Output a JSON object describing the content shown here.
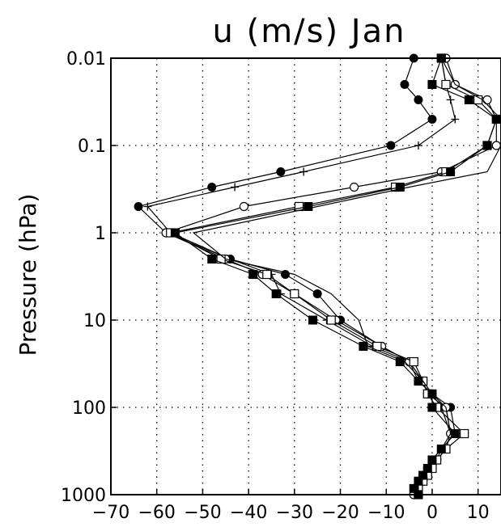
{
  "chart_data": {
    "type": "line",
    "title": "u (m/s) Jan",
    "ylabel": "Pressure (hPa)",
    "xlabel": "",
    "xlim": [
      -70,
      15
    ],
    "ylim": [
      0.01,
      1000
    ],
    "y_scale": "log",
    "y_reversed": true,
    "grid": "dotted",
    "x_ticks": [
      -70,
      -60,
      -50,
      -40,
      -30,
      -20,
      -10,
      0,
      10
    ],
    "x_tick_labels": [
      "−70",
      "−60",
      "−50",
      "−40",
      "−30",
      "−20",
      "−10",
      "0",
      "10"
    ],
    "y_ticks": [
      0.01,
      0.1,
      1,
      10,
      100,
      1000
    ],
    "y_tick_labels": [
      "0.01",
      "0.1",
      "1",
      "10",
      "100",
      "1000"
    ],
    "series": [
      {
        "marker": "filled-circle",
        "points": [
          [
            -4,
            0.01
          ],
          [
            -6,
            0.02
          ],
          [
            -3,
            0.03
          ],
          [
            0,
            0.05
          ],
          [
            -9,
            0.1
          ],
          [
            -33,
            0.2
          ],
          [
            -48,
            0.3
          ],
          [
            -64,
            0.5
          ],
          [
            -58,
            1
          ],
          [
            -44,
            2
          ],
          [
            -32,
            3
          ],
          [
            -25,
            5
          ],
          [
            -20,
            10
          ],
          [
            -11,
            20
          ],
          [
            -5,
            30
          ],
          [
            -3,
            50
          ],
          [
            0,
            70
          ],
          [
            4,
            100
          ],
          [
            5,
            200
          ],
          [
            2,
            300
          ],
          [
            1,
            400
          ],
          [
            -1,
            500
          ],
          [
            -2,
            600
          ],
          [
            -3,
            700
          ],
          [
            -4,
            850
          ],
          [
            -4,
            1000
          ]
        ]
      },
      {
        "marker": "plus",
        "points": [
          [
            2,
            0.01
          ],
          [
            3,
            0.02
          ],
          [
            4,
            0.03
          ],
          [
            5,
            0.05
          ],
          [
            -3,
            0.1
          ],
          [
            -28,
            0.2
          ],
          [
            -43,
            0.3
          ],
          [
            -62,
            0.5
          ],
          [
            -57,
            1
          ],
          [
            -44,
            2
          ],
          [
            -35,
            3
          ],
          [
            -33,
            5
          ],
          [
            -23,
            10
          ],
          [
            -13,
            20
          ],
          [
            -5,
            30
          ],
          [
            -2,
            50
          ],
          [
            0,
            70
          ],
          [
            2,
            100
          ],
          [
            4,
            200
          ],
          [
            3,
            300
          ],
          [
            1,
            400
          ],
          [
            0,
            500
          ],
          [
            -1,
            600
          ],
          [
            -2,
            700
          ],
          [
            -3,
            850
          ],
          [
            -3,
            1000
          ]
        ]
      },
      {
        "marker": "open-circle",
        "points": [
          [
            3,
            0.01
          ],
          [
            5,
            0.02
          ],
          [
            12,
            0.03
          ],
          [
            14,
            0.05
          ],
          [
            14,
            0.1
          ],
          [
            2,
            0.2
          ],
          [
            -17,
            0.3
          ],
          [
            -41,
            0.5
          ],
          [
            -58,
            1
          ],
          [
            -45,
            2
          ],
          [
            -37,
            3
          ],
          [
            -30,
            5
          ],
          [
            -21,
            10
          ],
          [
            -11,
            20
          ],
          [
            -5,
            30
          ],
          [
            -2,
            50
          ],
          [
            -1,
            70
          ],
          [
            3,
            100
          ],
          [
            4,
            200
          ],
          [
            3,
            300
          ],
          [
            1,
            400
          ],
          [
            0,
            500
          ],
          [
            -1,
            600
          ],
          [
            -2,
            700
          ],
          [
            -3,
            850
          ],
          [
            -4,
            1000
          ]
        ]
      },
      {
        "marker": "open-square",
        "points": [
          [
            2,
            0.01
          ],
          [
            3,
            0.02
          ],
          [
            10,
            0.03
          ],
          [
            14,
            0.05
          ],
          [
            12,
            0.1
          ],
          [
            3,
            0.2
          ],
          [
            -8,
            0.3
          ],
          [
            -29,
            0.5
          ],
          [
            -57,
            1
          ],
          [
            -46,
            2
          ],
          [
            -36,
            3
          ],
          [
            -30,
            5
          ],
          [
            -22,
            10
          ],
          [
            -12,
            20
          ],
          [
            -4,
            30
          ],
          [
            -2,
            50
          ],
          [
            -1,
            70
          ],
          [
            1,
            100
          ],
          [
            7,
            200
          ],
          [
            3,
            300
          ],
          [
            1,
            400
          ],
          [
            0,
            500
          ],
          [
            -1,
            600
          ],
          [
            -2,
            700
          ],
          [
            -3,
            850
          ],
          [
            -3,
            1000
          ]
        ]
      },
      {
        "marker": "filled-square",
        "points": [
          [
            2,
            0.01
          ],
          [
            0,
            0.02
          ],
          [
            8,
            0.03
          ],
          [
            14,
            0.05
          ],
          [
            12,
            0.1
          ],
          [
            4,
            0.2
          ],
          [
            -7,
            0.3
          ],
          [
            -27,
            0.5
          ],
          [
            -56,
            1
          ],
          [
            -48,
            2
          ],
          [
            -39,
            3
          ],
          [
            -34,
            5
          ],
          [
            -26,
            10
          ],
          [
            -15,
            20
          ],
          [
            -7,
            30
          ],
          [
            -3,
            50
          ],
          [
            0,
            70
          ],
          [
            0,
            100
          ],
          [
            5,
            200
          ],
          [
            2,
            300
          ],
          [
            0,
            400
          ],
          [
            -1,
            500
          ],
          [
            -2,
            600
          ],
          [
            -3,
            700
          ],
          [
            -4,
            850
          ],
          [
            -3,
            1000
          ]
        ]
      },
      {
        "marker": "none",
        "points": [
          [
            2,
            0.01
          ],
          [
            5,
            0.02
          ],
          [
            11,
            0.03
          ],
          [
            15,
            0.05
          ],
          [
            15,
            0.1
          ],
          [
            12,
            0.2
          ],
          [
            -5,
            0.3
          ],
          [
            -25,
            0.5
          ],
          [
            -52,
            1
          ],
          [
            -45,
            2
          ],
          [
            -30,
            3
          ],
          [
            -22,
            5
          ],
          [
            -16,
            10
          ],
          [
            -14,
            20
          ],
          [
            -6,
            30
          ],
          [
            -2,
            50
          ],
          [
            0,
            70
          ],
          [
            3,
            100
          ],
          [
            4,
            200
          ],
          [
            2,
            300
          ],
          [
            0,
            400
          ],
          [
            -1,
            500
          ],
          [
            -2,
            600
          ],
          [
            -3,
            700
          ],
          [
            -3,
            850
          ],
          [
            -3,
            1000
          ]
        ]
      }
    ]
  }
}
